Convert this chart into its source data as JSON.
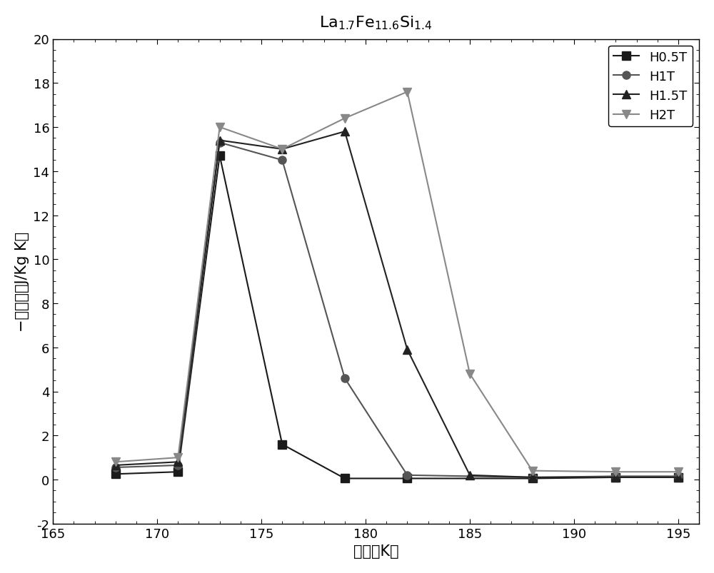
{
  "title_text": "La$_{1.7}$Fe$_{11.6}$Si$_{1.4}$",
  "xlabel": "温度（K）",
  "ylabel": "−磁熵变（J/Kg K）",
  "xlim": [
    165,
    196
  ],
  "ylim": [
    -2,
    20
  ],
  "xticks": [
    165,
    170,
    175,
    180,
    185,
    190,
    195
  ],
  "yticks": [
    -2,
    0,
    2,
    4,
    6,
    8,
    10,
    12,
    14,
    16,
    18,
    20
  ],
  "series": [
    {
      "label": "H0.5T",
      "color": "#1a1a1a",
      "marker": "s",
      "x": [
        168,
        171,
        173,
        176,
        179,
        182,
        188,
        192,
        195
      ],
      "y": [
        0.25,
        0.35,
        14.7,
        1.6,
        0.05,
        0.05,
        0.05,
        0.1,
        0.1
      ]
    },
    {
      "label": "H1T",
      "color": "#555555",
      "marker": "o",
      "x": [
        168,
        171,
        173,
        176,
        179,
        182,
        188,
        192,
        195
      ],
      "y": [
        0.55,
        0.65,
        15.3,
        14.5,
        4.6,
        0.2,
        0.1,
        0.15,
        0.15
      ]
    },
    {
      "label": "H1.5T",
      "color": "#222222",
      "marker": "^",
      "x": [
        168,
        171,
        173,
        176,
        179,
        182,
        185,
        188,
        192,
        195
      ],
      "y": [
        0.65,
        0.8,
        15.4,
        15.0,
        15.8,
        5.9,
        0.2,
        0.1,
        0.1,
        0.1
      ]
    },
    {
      "label": "H2T",
      "color": "#888888",
      "marker": "v",
      "x": [
        168,
        171,
        173,
        176,
        179,
        182,
        185,
        188,
        192,
        195
      ],
      "y": [
        0.8,
        1.0,
        16.0,
        15.0,
        16.4,
        17.6,
        4.8,
        0.4,
        0.35,
        0.35
      ]
    }
  ],
  "legend_loc": "upper right",
  "background_color": "#ffffff",
  "title_fontsize": 16,
  "label_fontsize": 15,
  "tick_fontsize": 13,
  "legend_fontsize": 13,
  "markersize": 8,
  "linewidth": 1.5
}
